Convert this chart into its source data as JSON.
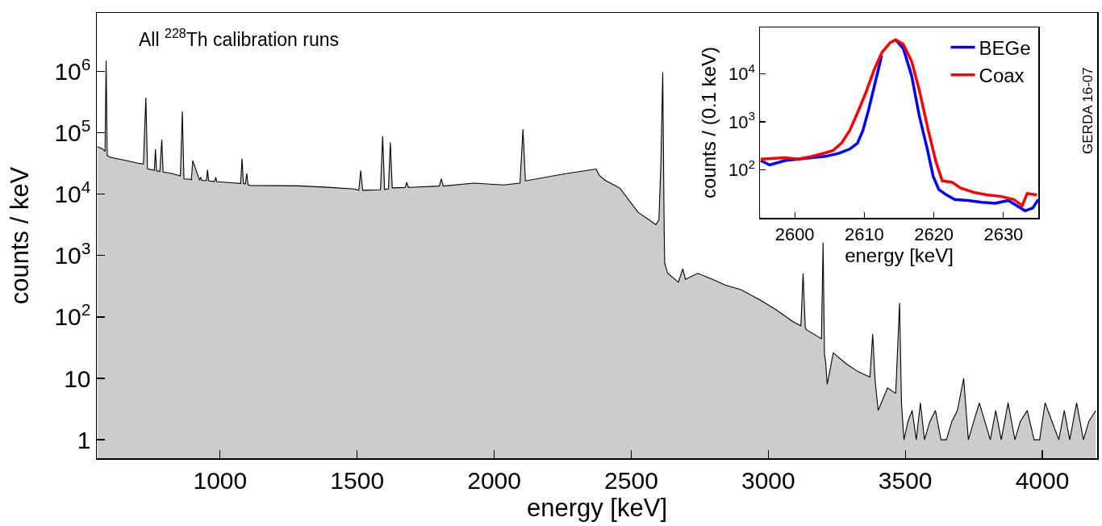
{
  "chart_data": [
    {
      "type": "area",
      "xlabel": "energy [keV]",
      "ylabel": "counts / keV",
      "log": "y",
      "grid": false,
      "xlim": [
        550,
        4200
      ],
      "xticks": [
        1000,
        1500,
        2000,
        2500,
        3000,
        3500,
        4000
      ],
      "ylim": [
        0.5,
        9000000
      ],
      "yticks": [
        1,
        10,
        {
          "value": 100,
          "label": "10$^{2}$"
        },
        {
          "value": 1000,
          "label": "10$^{3}$"
        },
        {
          "value": 10000,
          "label": "10$^{4}$"
        },
        {
          "value": 100000,
          "label": "10$^{5}$"
        },
        {
          "value": 1000000,
          "label": "10$^{6}$"
        }
      ],
      "annotations": [
        "All $^{228}$Th calibration runs",
        "GERDA 16-07"
      ],
      "series": [
        {
          "color": "#000000",
          "x": [
            552,
            570,
            580,
            584,
            588,
            600,
            650,
            700,
            720,
            729,
            735,
            760,
            764,
            768,
            780,
            787,
            792,
            820,
            855,
            862,
            868,
            890,
            895,
            900,
            925,
            929,
            933,
            950,
            954,
            958,
            980,
            984,
            988,
            1050,
            1075,
            1080,
            1085,
            1092,
            1097,
            1102,
            1110,
            1200,
            1284,
            1393,
            1489,
            1506,
            1513,
            1520,
            1585,
            1593,
            1600,
            1614,
            1621,
            1628,
            1675,
            1681,
            1687,
            1800,
            1807,
            1814,
            1925,
            2034,
            2094,
            2105,
            2114,
            2252,
            2372,
            2383,
            2404,
            2459,
            2525,
            2590,
            2601,
            2608,
            2615,
            2620,
            2622,
            2633,
            2672,
            2688,
            2698,
            2743,
            2797,
            2844,
            2900,
            2971,
            3030,
            3090,
            3119,
            3127,
            3135,
            3139,
            3188,
            3194,
            3200,
            3205,
            3209,
            3215,
            3237,
            3287,
            3326,
            3371,
            3381,
            3390,
            3401,
            3435,
            3465,
            3479,
            3486,
            3495,
            3510,
            3525,
            3540,
            3555,
            3570,
            3590,
            3610,
            3630,
            3650,
            3670,
            3690,
            3713,
            3730,
            3750,
            3770,
            3790,
            3810,
            3830,
            3850,
            3875,
            3900,
            3920,
            3945,
            3970,
            3990,
            4010,
            4035,
            4060,
            4080,
            4100,
            4125,
            4150,
            4170,
            4195
          ],
          "values": [
            59600,
            55000,
            50000,
            1500000,
            42500,
            40000,
            36000,
            32100,
            31000,
            376000,
            25900,
            24500,
            54600,
            24000,
            23500,
            77800,
            23000,
            22000,
            19900,
            222000,
            17800,
            17500,
            17200,
            35200,
            16900,
            18900,
            16800,
            16700,
            25200,
            16500,
            16200,
            19000,
            16000,
            15300,
            15000,
            38100,
            14900,
            14700,
            21800,
            14200,
            13900,
            13800,
            13700,
            13000,
            12200,
            11600,
            24400,
            11600,
            11800,
            88100,
            12000,
            12300,
            69700,
            12700,
            12900,
            15500,
            12900,
            13600,
            17800,
            13600,
            15200,
            14200,
            15200,
            114000,
            16500,
            21300,
            25700,
            20500,
            17000,
            12500,
            5080,
            3190,
            3850,
            30000,
            970000,
            3000,
            760,
            515,
            368,
            609,
            412,
            515,
            412,
            330,
            280,
            188,
            130,
            84,
            72,
            517,
            68,
            62,
            46,
            44,
            1630,
            25,
            19,
            8,
            26,
            17,
            13,
            10.5,
            53,
            9,
            3,
            7,
            5.7,
            170,
            4,
            1,
            2,
            3,
            1,
            4,
            1,
            2,
            3,
            1,
            1,
            2,
            3,
            10,
            1,
            2,
            4,
            2,
            1,
            3,
            1,
            4,
            1,
            2,
            3,
            1,
            1,
            4,
            2,
            1,
            3,
            1,
            4,
            1,
            2,
            3
          ]
        }
      ]
    },
    {
      "type": "line",
      "xlabel": "energy [keV]",
      "ylabel": "counts / (0.1 keV)",
      "log": "y",
      "grid": false,
      "legend": "top right",
      "line_style": "solid",
      "marker": "none",
      "xlim": [
        2595,
        2635
      ],
      "xticks": [
        2600,
        2610,
        2620,
        2630
      ],
      "ylim": [
        10,
        92000
      ],
      "yticks": [
        {
          "value": 100,
          "label": "10$^{2}$"
        },
        {
          "value": 1000,
          "label": "10$^{3}$"
        },
        {
          "value": 10000,
          "label": "10$^{4}$"
        }
      ],
      "series": [
        {
          "name": "BEGe",
          "color": "#0000ff",
          "x": [
            2595.1,
            2596.4,
            2598.6,
            2600.5,
            2602.4,
            2604.4,
            2606.3,
            2607.9,
            2609.0,
            2609.8,
            2610.6,
            2611.6,
            2612.5,
            2613.7,
            2614.5,
            2615.6,
            2616.8,
            2617.9,
            2619.1,
            2619.9,
            2620.7,
            2621.8,
            2623.0,
            2624.9,
            2626.9,
            2628.8,
            2630.7,
            2633.1,
            2634.2,
            2635.0
          ],
          "values": [
            156,
            126,
            156,
            167,
            178,
            190,
            219,
            270,
            356,
            661,
            1740,
            6890,
            23800,
            null,
            50900,
            33700,
            9080,
            1320,
            252,
            73,
            39,
            30,
            24,
            23,
            21,
            20,
            23,
            14,
            16,
            24
          ]
        },
        {
          "name": "Coax",
          "color": "#ff0000",
          "x": [
            2595.1,
            2598.6,
            2600.5,
            2602.4,
            2604.4,
            2605.5,
            2606.7,
            2607.9,
            2609.0,
            2610.2,
            2611.4,
            2612.5,
            2613.7,
            2614.5,
            2615.6,
            2616.8,
            2617.9,
            2619.1,
            2620.3,
            2621.2,
            2622.6,
            2623.8,
            2625.7,
            2627.6,
            2629.6,
            2631.5,
            2632.7,
            2633.4,
            2634.8
          ],
          "values": [
            167,
            178,
            167,
            190,
            225,
            252,
            356,
            661,
            1510,
            3970,
            12000,
            27400,
            44300,
            50900,
            41400,
            18100,
            4560,
            759,
            145,
            59,
            55,
            42,
            34,
            30,
            28,
            24,
            18,
            32,
            30
          ]
        }
      ]
    }
  ]
}
